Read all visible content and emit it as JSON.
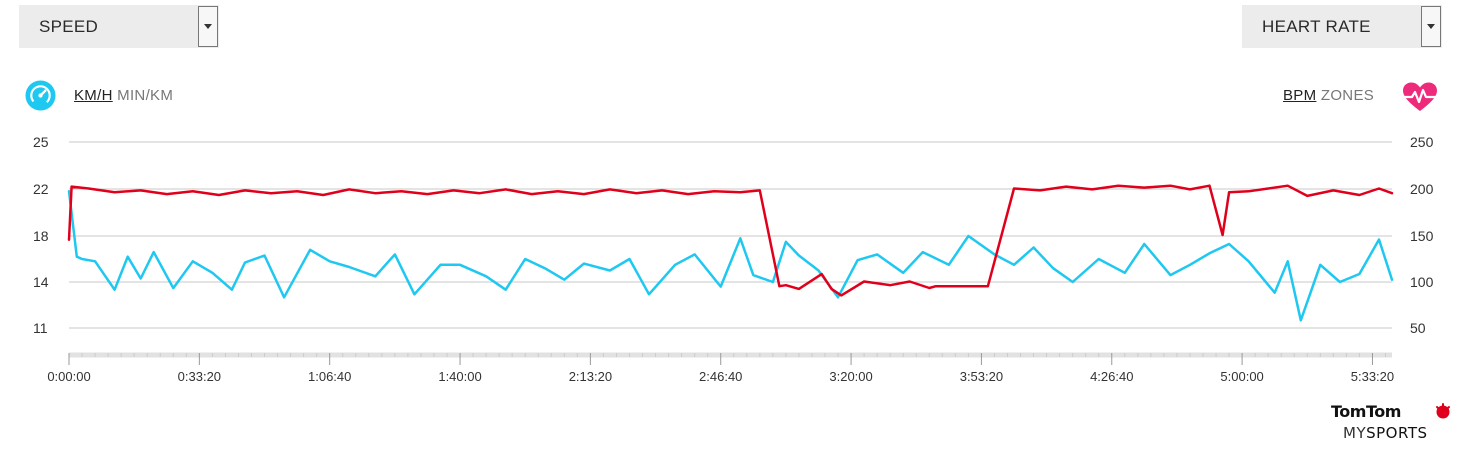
{
  "left_select": {
    "label": "SPEED"
  },
  "right_select": {
    "label": "HEART RATE"
  },
  "speed_units": {
    "active": "KM/H",
    "inactive": "MIN/KM"
  },
  "hr_units": {
    "active": "BPM",
    "inactive": "ZONES"
  },
  "icons": {
    "speed": "speedometer-icon",
    "heart": "heart-pulse-icon",
    "dropdown": "chevron-down-icon",
    "logo": "tomtom-hands-icon"
  },
  "brand": {
    "name": "TomTom",
    "product_prefix": "MY",
    "product_suffix": "SPORTS"
  },
  "colors": {
    "speed": "#1ec8f0",
    "heart_rate": "#e0001b",
    "grid": "#c8c8c8",
    "icon_blue": "#1ec8f0",
    "icon_pink": "#ee2a7b"
  },
  "chart_data": {
    "type": "line",
    "x_ticks": [
      "0:00:00",
      "0:33:20",
      "1:06:40",
      "1:40:00",
      "2:13:20",
      "2:46:40",
      "3:20:00",
      "3:53:20",
      "4:26:40",
      "5:00:00",
      "5:33:20"
    ],
    "xlim_seconds": [
      0,
      20300
    ],
    "left_axis": {
      "ticks": [
        "25",
        "22",
        "18",
        "14",
        "11"
      ],
      "range": [
        10,
        25
      ]
    },
    "right_axis": {
      "ticks": [
        "250",
        "200",
        "150",
        "100",
        "50"
      ],
      "range": [
        50,
        250
      ]
    },
    "series": [
      {
        "axis": "left",
        "x": [
          0,
          120,
          200,
          400,
          700,
          900,
          1100,
          1300,
          1600,
          1900,
          2200,
          2500,
          2700,
          3000,
          3300,
          3700,
          4000,
          4300,
          4700,
          5000,
          5300,
          5700,
          6000,
          6400,
          6700,
          7000,
          7300,
          7600,
          7900,
          8300,
          8600,
          8900,
          9300,
          9600,
          10000,
          10300,
          10500,
          10800,
          11000,
          11200,
          11500,
          11800,
          12100,
          12400,
          12800,
          13100,
          13500,
          13800,
          14200,
          14500,
          14800,
          15100,
          15400,
          15800,
          16200,
          16500,
          16900,
          17200,
          17500,
          17800,
          18100,
          18500,
          18700,
          18900,
          19200,
          19500,
          19800,
          20100,
          20300
        ],
        "y": [
          21.8,
          16.2,
          16.0,
          15.8,
          13.5,
          16.2,
          14.3,
          16.6,
          13.6,
          15.8,
          14.8,
          13.5,
          15.7,
          16.3,
          13.0,
          16.8,
          15.8,
          15.3,
          14.5,
          16.4,
          13.2,
          15.5,
          15.5,
          14.5,
          13.5,
          16.0,
          15.2,
          14.2,
          15.6,
          15.0,
          16.0,
          13.2,
          15.5,
          16.4,
          13.7,
          17.8,
          14.6,
          14.0,
          17.5,
          16.3,
          15.0,
          13.0,
          15.9,
          16.4,
          14.8,
          16.6,
          15.5,
          18.0,
          16.4,
          15.5,
          17.0,
          15.2,
          14.0,
          16.0,
          14.8,
          17.3,
          14.6,
          15.5,
          16.5,
          17.3,
          15.8,
          13.3,
          15.8,
          11.5,
          15.5,
          14.0,
          14.7,
          17.7,
          14.2
        ]
      },
      {
        "axis": "right",
        "x": [
          0,
          40,
          300,
          700,
          1100,
          1500,
          1900,
          2300,
          2700,
          3100,
          3500,
          3900,
          4300,
          4700,
          5100,
          5500,
          5900,
          6300,
          6700,
          7100,
          7500,
          7900,
          8300,
          8700,
          9100,
          9500,
          9900,
          10300,
          10600,
          10900,
          11000,
          11200,
          11550,
          11700,
          11850,
          12200,
          12600,
          12900,
          13200,
          13300,
          13700,
          14100,
          14500,
          14900,
          15300,
          15700,
          16100,
          16500,
          16900,
          17200,
          17500,
          17700,
          17800,
          18100,
          18400,
          18700,
          19000,
          19400,
          19800,
          20100,
          20300
        ],
        "y": [
          145,
          202,
          200,
          196,
          198,
          194,
          197,
          193,
          198,
          195,
          197,
          193,
          199,
          195,
          197,
          194,
          198,
          195,
          199,
          194,
          197,
          194,
          199,
          195,
          198,
          194,
          197,
          196,
          198,
          95,
          96,
          92,
          108,
          92,
          85,
          100,
          96,
          100,
          93,
          95,
          95,
          95,
          200,
          198,
          202,
          199,
          203,
          201,
          203,
          199,
          203,
          150,
          196,
          197,
          200,
          203,
          192,
          198,
          193,
          200,
          195
        ]
      }
    ]
  }
}
